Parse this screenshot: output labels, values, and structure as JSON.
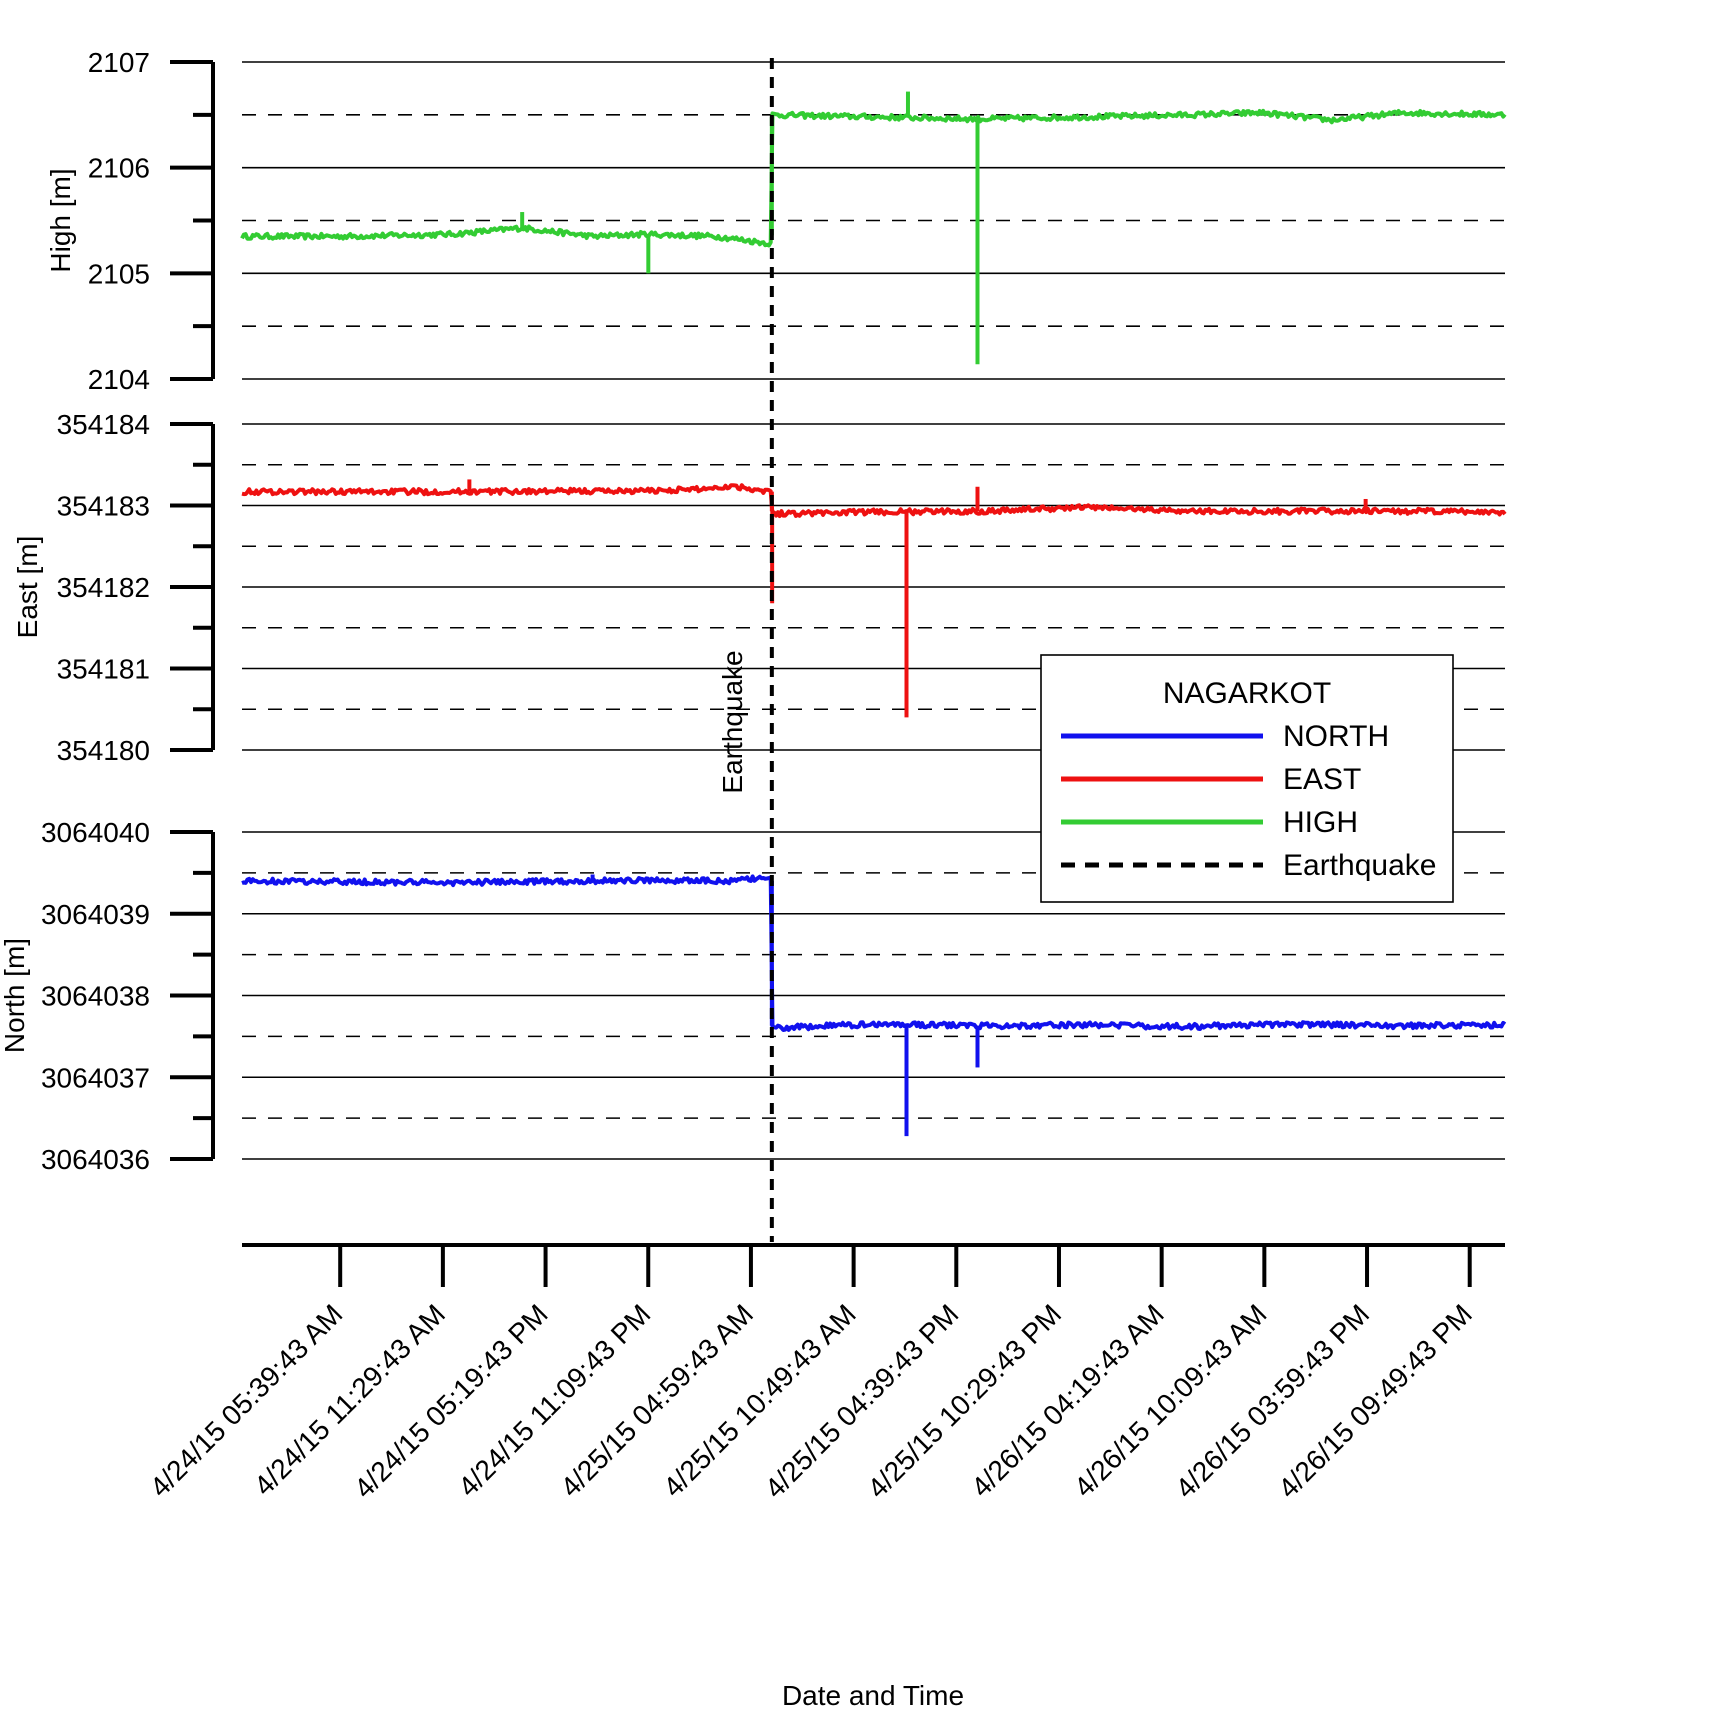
{
  "chart_data": {
    "type": "line",
    "x_axis": {
      "label": "Date and Time",
      "tick_labels": [
        "4/24/15 05:39:43 AM",
        "4/24/15 11:29:43 AM",
        "4/24/15 05:19:43 PM",
        "4/24/15 11:09:43 PM",
        "4/25/15 04:59:43 AM",
        "4/25/15 10:49:43 AM",
        "4/25/15 04:39:43 PM",
        "4/25/15 10:29:43 PM",
        "4/26/15 04:19:43 AM",
        "4/26/15 10:09:43 AM",
        "4/26/15 03:59:43 PM",
        "4/26/15 09:49:43 PM"
      ],
      "range": [
        "4/24/15 00:05",
        "4/26/15 23:50"
      ]
    },
    "earthquake": {
      "label": "Earthquake",
      "time": "4/25/15 06:11"
    },
    "panels": [
      {
        "key": "high",
        "ylabel": "High [m]",
        "ylim": [
          2104,
          2107
        ],
        "yticks": [
          "2104",
          "2105",
          "2106",
          "2107"
        ],
        "series_name": "HIGH",
        "color": "#33cc33",
        "before_level": 2105.36,
        "after_level": 2106.48,
        "profile_times": [
          "4/24/15 00:05",
          "4/24/15 06:00",
          "4/24/15 12:00",
          "4/24/15 16:00",
          "4/24/15 20:00",
          "4/24/15 23:00",
          "4/25/15 03:00",
          "4/25/15 06:10",
          "4/25/15 06:12",
          "4/25/15 12:00",
          "4/25/15 18:00",
          "4/26/15 00:00",
          "4/26/15 06:00",
          "4/26/15 10:00",
          "4/26/15 14:00",
          "4/26/15 18:00",
          "4/26/15 23:50"
        ],
        "profile_values": [
          2105.35,
          2105.35,
          2105.37,
          2105.43,
          2105.35,
          2105.37,
          2105.35,
          2105.28,
          2106.5,
          2106.48,
          2106.46,
          2106.48,
          2106.5,
          2106.52,
          2106.45,
          2106.52,
          2106.5
        ],
        "spikes": [
          {
            "time": "4/24/15 16:00",
            "value": 2105.58
          },
          {
            "time": "4/24/15 23:10",
            "value": 2105.0
          },
          {
            "time": "4/25/15 17:52",
            "value": 2104.14
          },
          {
            "time": "4/25/15 13:55",
            "value": 2106.72
          }
        ]
      },
      {
        "key": "east",
        "ylabel": "East [m]",
        "ylim": [
          354180,
          354184
        ],
        "yticks": [
          "354180",
          "354181",
          "354182",
          "354183",
          "354184"
        ],
        "series_name": "EAST",
        "color": "#ee1111",
        "before_level": 354183.17,
        "after_level": 354182.93,
        "profile_times": [
          "4/24/15 00:05",
          "4/24/15 12:00",
          "4/24/15 23:00",
          "4/25/15 02:00",
          "4/25/15 04:00",
          "4/25/15 06:10",
          "4/25/15 06:12",
          "4/25/15 12:00",
          "4/25/15 18:00",
          "4/26/15 00:00",
          "4/26/15 06:00",
          "4/26/15 12:00",
          "4/26/15 18:00",
          "4/26/15 23:50"
        ],
        "profile_values": [
          354183.17,
          354183.17,
          354183.18,
          354183.2,
          354183.24,
          354183.17,
          354182.9,
          354182.92,
          354182.93,
          354182.98,
          354182.93,
          354182.93,
          354182.93,
          354182.92
        ],
        "spikes": [
          {
            "time": "4/24/15 13:00",
            "value": 354183.32
          },
          {
            "time": "4/25/15 06:12",
            "value": 354181.8
          },
          {
            "time": "4/25/15 13:50",
            "value": 354180.4
          },
          {
            "time": "4/25/15 17:52",
            "value": 354183.23
          },
          {
            "time": "4/26/15 15:55",
            "value": 354183.08
          }
        ]
      },
      {
        "key": "north",
        "ylabel": "North [m]",
        "ylim": [
          3064036,
          3064040
        ],
        "yticks": [
          "3064036",
          "3064037",
          "3064038",
          "3064039",
          "3064040"
        ],
        "series_name": "NORTH",
        "color": "#1111ee",
        "before_level": 3064039.4,
        "after_level": 3064037.63,
        "profile_times": [
          "4/24/15 00:05",
          "4/24/15 12:00",
          "4/24/15 23:00",
          "4/25/15 04:00",
          "4/25/15 06:10",
          "4/25/15 06:12",
          "4/25/15 12:00",
          "4/25/15 18:00",
          "4/26/15 00:00",
          "4/26/15 06:00",
          "4/26/15 12:00",
          "4/26/15 18:00",
          "4/26/15 23:50"
        ],
        "profile_values": [
          3064039.4,
          3064039.38,
          3064039.41,
          3064039.4,
          3064039.45,
          3064037.6,
          3064037.65,
          3064037.63,
          3064037.64,
          3064037.62,
          3064037.65,
          3064037.63,
          3064037.64
        ],
        "spikes": [
          {
            "time": "4/24/15 20:00",
            "value": 3064039.48
          },
          {
            "time": "4/25/15 13:50",
            "value": 3064036.28
          },
          {
            "time": "4/25/15 17:52",
            "value": 3064037.12
          }
        ]
      }
    ],
    "legend": {
      "title": "NAGARKOT",
      "position": "right-middle",
      "entries": [
        {
          "label": "NORTH",
          "color": "#1111ee",
          "style": "solid"
        },
        {
          "label": "EAST",
          "color": "#ee1111",
          "style": "solid"
        },
        {
          "label": "HIGH",
          "color": "#33cc33",
          "style": "solid"
        },
        {
          "label": "Earthquake",
          "color": "#000000",
          "style": "dashed"
        }
      ]
    },
    "grid": true
  }
}
